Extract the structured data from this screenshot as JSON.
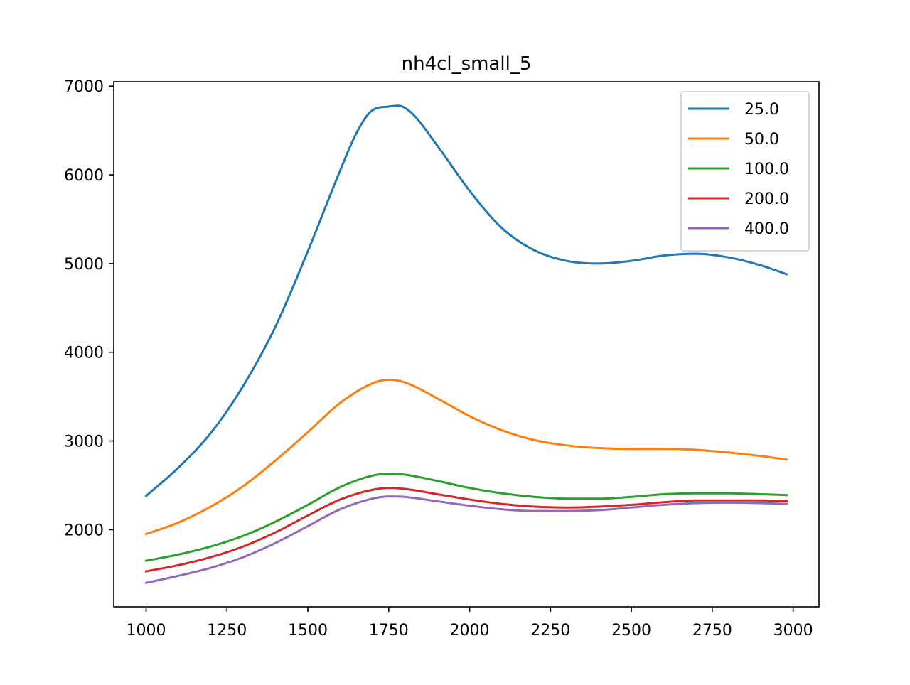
{
  "chart_data": {
    "type": "line",
    "title": "nh4cl_small_5",
    "xlabel": "",
    "ylabel": "",
    "xlim": [
      900,
      3080
    ],
    "ylim": [
      1130,
      7050
    ],
    "xticks": [
      1000,
      1250,
      1500,
      1750,
      2000,
      2250,
      2500,
      2750,
      3000
    ],
    "yticks": [
      2000,
      3000,
      4000,
      5000,
      6000,
      7000
    ],
    "grid": false,
    "legend_position": "top-right",
    "series": [
      {
        "name": "25.0",
        "color": "#1f77b4",
        "x": [
          1000,
          1100,
          1200,
          1300,
          1400,
          1500,
          1600,
          1650,
          1700,
          1750,
          1780,
          1820,
          1900,
          2000,
          2100,
          2200,
          2300,
          2400,
          2500,
          2600,
          2700,
          2800,
          2900,
          2980
        ],
        "y": [
          2380,
          2700,
          3090,
          3620,
          4290,
          5140,
          6050,
          6470,
          6730,
          6770,
          6780,
          6700,
          6330,
          5820,
          5400,
          5150,
          5030,
          5000,
          5030,
          5090,
          5110,
          5070,
          4980,
          4880
        ]
      },
      {
        "name": "50.0",
        "color": "#ff7f0e",
        "x": [
          1000,
          1100,
          1200,
          1300,
          1400,
          1500,
          1600,
          1700,
          1750,
          1800,
          1900,
          2000,
          2100,
          2200,
          2300,
          2400,
          2500,
          2600,
          2700,
          2800,
          2900,
          2980
        ],
        "y": [
          1950,
          2080,
          2260,
          2490,
          2780,
          3100,
          3430,
          3650,
          3690,
          3660,
          3480,
          3280,
          3120,
          3010,
          2950,
          2920,
          2910,
          2910,
          2900,
          2870,
          2830,
          2790
        ]
      },
      {
        "name": "100.0",
        "color": "#2ca02c",
        "x": [
          1000,
          1100,
          1200,
          1300,
          1400,
          1500,
          1600,
          1700,
          1750,
          1800,
          1900,
          2000,
          2100,
          2200,
          2300,
          2400,
          2500,
          2600,
          2700,
          2800,
          2900,
          2980
        ],
        "y": [
          1650,
          1720,
          1810,
          1930,
          2090,
          2280,
          2480,
          2610,
          2630,
          2620,
          2550,
          2470,
          2410,
          2370,
          2350,
          2350,
          2370,
          2400,
          2410,
          2410,
          2400,
          2390
        ]
      },
      {
        "name": "200.0",
        "color": "#d62728",
        "x": [
          1000,
          1100,
          1200,
          1300,
          1400,
          1500,
          1600,
          1700,
          1750,
          1800,
          1900,
          2000,
          2100,
          2200,
          2300,
          2400,
          2500,
          2600,
          2700,
          2800,
          2900,
          2980
        ],
        "y": [
          1530,
          1600,
          1690,
          1810,
          1970,
          2160,
          2340,
          2450,
          2470,
          2460,
          2400,
          2340,
          2290,
          2260,
          2250,
          2260,
          2280,
          2310,
          2330,
          2330,
          2330,
          2320
        ]
      },
      {
        "name": "400.0",
        "color": "#9467bd",
        "x": [
          1000,
          1100,
          1200,
          1300,
          1400,
          1500,
          1600,
          1700,
          1750,
          1800,
          1900,
          2000,
          2100,
          2200,
          2300,
          2400,
          2500,
          2600,
          2700,
          2800,
          2900,
          2980
        ],
        "y": [
          1400,
          1480,
          1570,
          1690,
          1850,
          2040,
          2230,
          2350,
          2375,
          2370,
          2320,
          2270,
          2230,
          2210,
          2210,
          2220,
          2250,
          2280,
          2300,
          2305,
          2300,
          2290
        ]
      }
    ]
  }
}
